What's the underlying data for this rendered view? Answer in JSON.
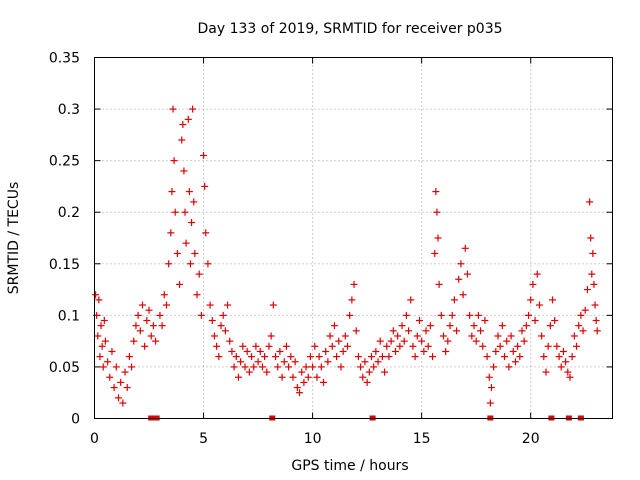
{
  "chart_data": {
    "type": "scatter",
    "title": "Day 133 of 2019, SRMTID for receiver p035",
    "xlabel": "GPS time / hours",
    "ylabel": "SRMTID / TECUs",
    "xlim": [
      0,
      23.75
    ],
    "ylim": [
      0,
      0.35
    ],
    "x_ticks": [
      "0",
      "5",
      "10",
      "15",
      "20"
    ],
    "y_ticks": [
      "0",
      "0.05",
      "0.1",
      "0.15",
      "0.2",
      "0.25",
      "0.3",
      "0.35"
    ],
    "grid": true,
    "marker": "plus",
    "color": "#e00000",
    "series": [
      {
        "name": "SRMTID",
        "points": [
          [
            0.05,
            0.12
          ],
          [
            0.1,
            0.1
          ],
          [
            0.15,
            0.08
          ],
          [
            0.2,
            0.115
          ],
          [
            0.25,
            0.06
          ],
          [
            0.3,
            0.09
          ],
          [
            0.35,
            0.07
          ],
          [
            0.4,
            0.05
          ],
          [
            0.45,
            0.095
          ],
          [
            0.5,
            0.075
          ],
          [
            0.6,
            0.055
          ],
          [
            0.7,
            0.04
          ],
          [
            0.8,
            0.065
          ],
          [
            0.9,
            0.03
          ],
          [
            1.0,
            0.05
          ],
          [
            1.1,
            0.02
          ],
          [
            1.2,
            0.035
          ],
          [
            1.3,
            0.015
          ],
          [
            1.4,
            0.045
          ],
          [
            1.5,
            0.03
          ],
          [
            1.6,
            0.06
          ],
          [
            1.7,
            0.05
          ],
          [
            1.8,
            0.075
          ],
          [
            1.9,
            0.09
          ],
          [
            2.0,
            0.1
          ],
          [
            2.1,
            0.085
          ],
          [
            2.2,
            0.11
          ],
          [
            2.3,
            0.07
          ],
          [
            2.4,
            0.095
          ],
          [
            2.5,
            0.105
          ],
          [
            2.6,
            0.08
          ],
          [
            2.7,
            0.09
          ],
          [
            2.8,
            0.075
          ],
          [
            3.0,
            0.1
          ],
          [
            3.1,
            0.09
          ],
          [
            3.2,
            0.12
          ],
          [
            3.3,
            0.11
          ],
          [
            3.4,
            0.15
          ],
          [
            3.5,
            0.18
          ],
          [
            3.55,
            0.22
          ],
          [
            3.6,
            0.3
          ],
          [
            3.65,
            0.25
          ],
          [
            3.7,
            0.2
          ],
          [
            3.8,
            0.16
          ],
          [
            3.9,
            0.13
          ],
          [
            4.0,
            0.27
          ],
          [
            4.05,
            0.285
          ],
          [
            4.1,
            0.24
          ],
          [
            4.15,
            0.2
          ],
          [
            4.2,
            0.17
          ],
          [
            4.3,
            0.29
          ],
          [
            4.35,
            0.22
          ],
          [
            4.4,
            0.15
          ],
          [
            4.45,
            0.19
          ],
          [
            4.5,
            0.3
          ],
          [
            4.55,
            0.21
          ],
          [
            4.6,
            0.16
          ],
          [
            4.7,
            0.12
          ],
          [
            4.8,
            0.14
          ],
          [
            4.9,
            0.1
          ],
          [
            5.0,
            0.255
          ],
          [
            5.05,
            0.225
          ],
          [
            5.1,
            0.18
          ],
          [
            5.2,
            0.15
          ],
          [
            5.3,
            0.11
          ],
          [
            5.4,
            0.095
          ],
          [
            5.5,
            0.08
          ],
          [
            5.6,
            0.07
          ],
          [
            5.7,
            0.06
          ],
          [
            5.8,
            0.09
          ],
          [
            5.9,
            0.1
          ],
          [
            6.0,
            0.085
          ],
          [
            6.1,
            0.11
          ],
          [
            6.2,
            0.075
          ],
          [
            6.3,
            0.065
          ],
          [
            6.4,
            0.05
          ],
          [
            6.5,
            0.06
          ],
          [
            6.6,
            0.04
          ],
          [
            6.7,
            0.055
          ],
          [
            6.8,
            0.07
          ],
          [
            6.9,
            0.05
          ],
          [
            7.0,
            0.065
          ],
          [
            7.1,
            0.045
          ],
          [
            7.2,
            0.06
          ],
          [
            7.3,
            0.05
          ],
          [
            7.4,
            0.07
          ],
          [
            7.5,
            0.055
          ],
          [
            7.6,
            0.065
          ],
          [
            7.7,
            0.05
          ],
          [
            7.8,
            0.06
          ],
          [
            7.9,
            0.045
          ],
          [
            8.0,
            0.07
          ],
          [
            8.1,
            0.08
          ],
          [
            8.2,
            0.11
          ],
          [
            8.3,
            0.06
          ],
          [
            8.4,
            0.05
          ],
          [
            8.5,
            0.065
          ],
          [
            8.6,
            0.04
          ],
          [
            8.7,
            0.055
          ],
          [
            8.8,
            0.07
          ],
          [
            8.9,
            0.05
          ],
          [
            9.0,
            0.06
          ],
          [
            9.1,
            0.04
          ],
          [
            9.2,
            0.055
          ],
          [
            9.3,
            0.03
          ],
          [
            9.4,
            0.025
          ],
          [
            9.5,
            0.045
          ],
          [
            9.6,
            0.035
          ],
          [
            9.7,
            0.05
          ],
          [
            9.8,
            0.04
          ],
          [
            9.9,
            0.06
          ],
          [
            10.0,
            0.05
          ],
          [
            10.1,
            0.07
          ],
          [
            10.2,
            0.04
          ],
          [
            10.3,
            0.06
          ],
          [
            10.4,
            0.05
          ],
          [
            10.5,
            0.035
          ],
          [
            10.6,
            0.065
          ],
          [
            10.7,
            0.055
          ],
          [
            10.8,
            0.08
          ],
          [
            10.9,
            0.07
          ],
          [
            11.0,
            0.09
          ],
          [
            11.1,
            0.06
          ],
          [
            11.2,
            0.075
          ],
          [
            11.3,
            0.05
          ],
          [
            11.4,
            0.065
          ],
          [
            11.5,
            0.08
          ],
          [
            11.6,
            0.07
          ],
          [
            11.7,
            0.1
          ],
          [
            11.8,
            0.115
          ],
          [
            11.9,
            0.13
          ],
          [
            12.0,
            0.085
          ],
          [
            12.1,
            0.06
          ],
          [
            12.2,
            0.05
          ],
          [
            12.3,
            0.04
          ],
          [
            12.4,
            0.055
          ],
          [
            12.5,
            0.035
          ],
          [
            12.6,
            0.045
          ],
          [
            12.7,
            0.06
          ],
          [
            12.8,
            0.05
          ],
          [
            12.9,
            0.065
          ],
          [
            13.0,
            0.055
          ],
          [
            13.1,
            0.075
          ],
          [
            13.2,
            0.06
          ],
          [
            13.3,
            0.045
          ],
          [
            13.4,
            0.07
          ],
          [
            13.5,
            0.06
          ],
          [
            13.6,
            0.075
          ],
          [
            13.7,
            0.085
          ],
          [
            13.8,
            0.065
          ],
          [
            13.9,
            0.08
          ],
          [
            14.0,
            0.07
          ],
          [
            14.1,
            0.09
          ],
          [
            14.2,
            0.075
          ],
          [
            14.3,
            0.1
          ],
          [
            14.4,
            0.085
          ],
          [
            14.5,
            0.115
          ],
          [
            14.6,
            0.07
          ],
          [
            14.7,
            0.06
          ],
          [
            14.8,
            0.08
          ],
          [
            14.9,
            0.095
          ],
          [
            15.0,
            0.075
          ],
          [
            15.1,
            0.065
          ],
          [
            15.2,
            0.085
          ],
          [
            15.3,
            0.07
          ],
          [
            15.4,
            0.09
          ],
          [
            15.5,
            0.06
          ],
          [
            15.6,
            0.16
          ],
          [
            15.65,
            0.22
          ],
          [
            15.7,
            0.2
          ],
          [
            15.75,
            0.175
          ],
          [
            15.8,
            0.13
          ],
          [
            15.9,
            0.1
          ],
          [
            16.0,
            0.08
          ],
          [
            16.1,
            0.065
          ],
          [
            16.2,
            0.075
          ],
          [
            16.3,
            0.09
          ],
          [
            16.4,
            0.1
          ],
          [
            16.5,
            0.115
          ],
          [
            16.6,
            0.085
          ],
          [
            16.7,
            0.135
          ],
          [
            16.8,
            0.15
          ],
          [
            16.9,
            0.12
          ],
          [
            17.0,
            0.165
          ],
          [
            17.1,
            0.14
          ],
          [
            17.2,
            0.1
          ],
          [
            17.3,
            0.08
          ],
          [
            17.4,
            0.09
          ],
          [
            17.5,
            0.075
          ],
          [
            17.6,
            0.1
          ],
          [
            17.7,
            0.085
          ],
          [
            17.8,
            0.07
          ],
          [
            17.9,
            0.095
          ],
          [
            18.0,
            0.06
          ],
          [
            18.1,
            0.04
          ],
          [
            18.15,
            0.015
          ],
          [
            18.2,
            0.03
          ],
          [
            18.3,
            0.05
          ],
          [
            18.4,
            0.065
          ],
          [
            18.5,
            0.08
          ],
          [
            18.6,
            0.07
          ],
          [
            18.7,
            0.09
          ],
          [
            18.8,
            0.06
          ],
          [
            18.9,
            0.075
          ],
          [
            19.0,
            0.05
          ],
          [
            19.1,
            0.08
          ],
          [
            19.2,
            0.065
          ],
          [
            19.3,
            0.055
          ],
          [
            19.4,
            0.07
          ],
          [
            19.5,
            0.06
          ],
          [
            19.6,
            0.085
          ],
          [
            19.7,
            0.075
          ],
          [
            19.8,
            0.09
          ],
          [
            19.9,
            0.1
          ],
          [
            20.0,
            0.115
          ],
          [
            20.1,
            0.13
          ],
          [
            20.2,
            0.095
          ],
          [
            20.3,
            0.14
          ],
          [
            20.4,
            0.11
          ],
          [
            20.5,
            0.08
          ],
          [
            20.6,
            0.06
          ],
          [
            20.7,
            0.045
          ],
          [
            20.8,
            0.07
          ],
          [
            20.9,
            0.09
          ],
          [
            21.0,
            0.115
          ],
          [
            21.1,
            0.095
          ],
          [
            21.2,
            0.07
          ],
          [
            21.3,
            0.06
          ],
          [
            21.4,
            0.05
          ],
          [
            21.5,
            0.065
          ],
          [
            21.6,
            0.055
          ],
          [
            21.7,
            0.045
          ],
          [
            21.8,
            0.04
          ],
          [
            21.9,
            0.06
          ],
          [
            22.0,
            0.08
          ],
          [
            22.1,
            0.07
          ],
          [
            22.2,
            0.09
          ],
          [
            22.3,
            0.1
          ],
          [
            22.4,
            0.085
          ],
          [
            22.5,
            0.105
          ],
          [
            22.6,
            0.125
          ],
          [
            22.7,
            0.21
          ],
          [
            22.75,
            0.175
          ],
          [
            22.8,
            0.14
          ],
          [
            22.85,
            0.16
          ],
          [
            22.9,
            0.13
          ],
          [
            22.95,
            0.11
          ],
          [
            23.0,
            0.095
          ],
          [
            23.05,
            0.085
          ]
        ]
      }
    ],
    "gap_marks": [
      2.6,
      2.85,
      8.15,
      12.75,
      18.15,
      20.95,
      21.75,
      22.3
    ]
  }
}
